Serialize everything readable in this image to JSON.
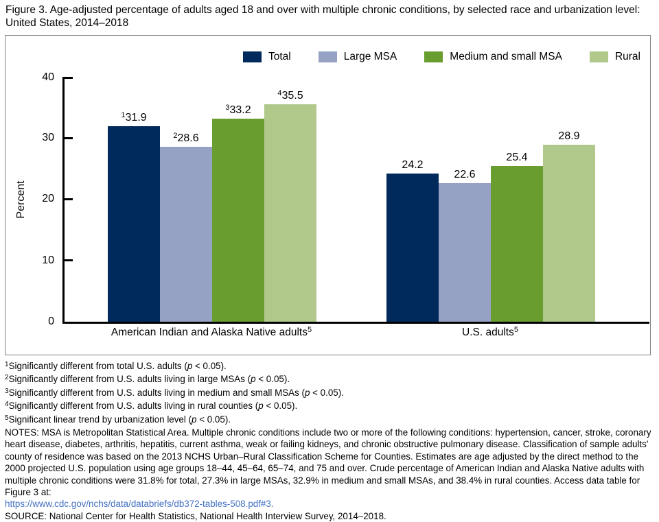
{
  "title": "Figure 3. Age-adjusted percentage of adults aged 18 and over with multiple chronic conditions, by selected race and urbanization level: United States, 2014–2018",
  "chart_data": {
    "type": "bar",
    "categories": [
      "American Indian and Alaska Native adults",
      "U.S. adults"
    ],
    "category_sups": [
      "5",
      "5"
    ],
    "series": [
      {
        "name": "Total",
        "color": "#002a5c",
        "values": [
          31.9,
          24.2
        ],
        "sups": [
          "1",
          ""
        ]
      },
      {
        "name": "Large MSA",
        "color": "#96a2c4",
        "values": [
          28.6,
          22.6
        ],
        "sups": [
          "2",
          ""
        ]
      },
      {
        "name": "Medium and small MSA",
        "color": "#699d30",
        "values": [
          33.2,
          25.4
        ],
        "sups": [
          "3",
          ""
        ]
      },
      {
        "name": "Rural",
        "color": "#b0c98b",
        "values": [
          35.5,
          28.9
        ],
        "sups": [
          "4",
          ""
        ]
      }
    ],
    "xlabel": "",
    "ylabel": "Percent",
    "ylim": [
      0,
      40
    ],
    "yticks": [
      0,
      10,
      20,
      30,
      40
    ],
    "grid": false,
    "legend_position": "top-right-inside"
  },
  "footnotes": [
    {
      "sup": "1",
      "before": "Significantly different from total U.S. adults (",
      "p": "p",
      "after": " < 0.05)."
    },
    {
      "sup": "2",
      "before": "Significantly different from U.S. adults living in large MSAs (",
      "p": "p",
      "after": " < 0.05)."
    },
    {
      "sup": "3",
      "before": "Significantly different from U.S. adults living in medium and small MSAs (",
      "p": "p",
      "after": " < 0.05)."
    },
    {
      "sup": "4",
      "before": "Significantly different from U.S. adults living in rural counties (",
      "p": "p",
      "after": " < 0.05)."
    },
    {
      "sup": "5",
      "before": "Significant linear trend by urbanization level (",
      "p": "p",
      "after": " < 0.05)."
    }
  ],
  "notes": "NOTES: MSA is Metropolitan Statistical Area. Multiple chronic conditions include two or more of the following conditions: hypertension, cancer, stroke, coronary heart disease, diabetes, arthritis, hepatitis, current asthma, weak or failing kidneys, and chronic obstructive pulmonary disease. Classification of sample adults' county of residence was based on the 2013 NCHS Urban–Rural Classification Scheme for Counties. Estimates are age adjusted by the direct method to the 2000 projected U.S. population using age groups 18–44, 45–64, 65–74, and 75 and over. Crude percentage of American Indian and Alaska Native adults with multiple chronic conditions were 31.8% for total, 27.3% in large MSAs, 32.9% in medium and small MSAs, and 38.4% in rural counties. Access data table for Figure 3 at:",
  "link": "https://www.cdc.gov/nchs/data/databriefs/db372-tables-508.pdf#3.",
  "source": "SOURCE: National Center for Health Statistics, National Health Interview Survey, 2014–2018.",
  "colors": {
    "link": "#4472c4",
    "axis": "#000000",
    "box_border": "#7f7f7f"
  }
}
